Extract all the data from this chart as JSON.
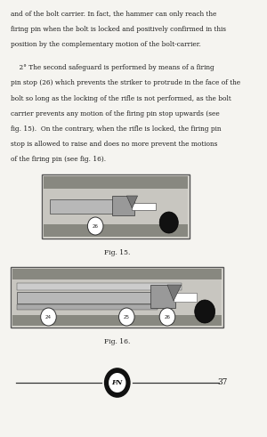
{
  "bg_color": "#f5f4f0",
  "text_color": "#1a1a1a",
  "body_text_lines": [
    "and of the bolt carrier. In fact, the hammer can only reach the",
    "firing pin when the bolt is locked and positively confirmed in this",
    "position by the complementary motion of the bolt-carrier.",
    "",
    "    2° The second safeguard is performed by means of a firing",
    "pin stop (26) which prevents the striker to protrude in the face of the",
    "bolt so long as the locking of the rifle is not performed, as the bolt",
    "carrier prevents any motion of the firing pin stop upwards (see",
    "fig. 15).  On the contrary, when the rifle is locked, the firing pin",
    "stop is allowed to raise and does no more prevent the motions",
    "of the firing pin (see fig. 16)."
  ],
  "fig15_caption": "Fig. 15.",
  "fig16_caption": "Fig. 16.",
  "page_number": "37"
}
